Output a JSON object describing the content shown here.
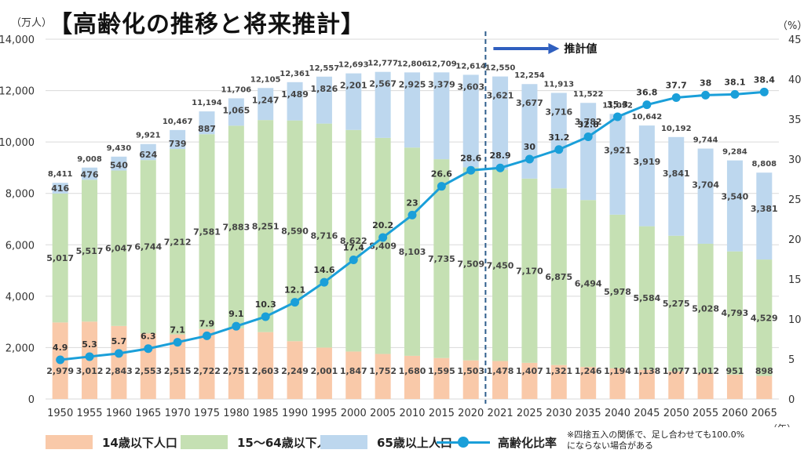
{
  "title": "【高齢化の推移と将来推計】",
  "left_unit": "（万人）",
  "right_unit": "（%）",
  "x_unit": "（年）",
  "projection_label": "推計値",
  "note": "※四捨五入の関係で、足し合わせても100.0%\nにならない場合がある",
  "colors": {
    "under14": "#f9c9a9",
    "age15_64": "#c5e0b3",
    "over65": "#bdd7ee",
    "ratio": "#1a9fd9",
    "divider": "#2e5e8c",
    "arrow": "#2f5fbf"
  },
  "chart_data": {
    "type": "bar",
    "stacked": true,
    "categories": [
      "1950",
      "1955",
      "1960",
      "1965",
      "1970",
      "1975",
      "1980",
      "1985",
      "1990",
      "1995",
      "2000",
      "2005",
      "2010",
      "2015",
      "2020",
      "2021",
      "2025",
      "2030",
      "2035",
      "2040",
      "2045",
      "2050",
      "2055",
      "2060",
      "2065"
    ],
    "series": [
      {
        "name": "14歳以下人口",
        "values": [
          2979,
          3012,
          2843,
          2553,
          2515,
          2722,
          2751,
          2603,
          2249,
          2001,
          1847,
          1752,
          1680,
          1595,
          1503,
          1478,
          1407,
          1321,
          1246,
          1194,
          1138,
          1077,
          1012,
          951,
          898
        ]
      },
      {
        "name": "15～64歳以下人口",
        "values": [
          5017,
          5517,
          6047,
          6744,
          7212,
          7581,
          7883,
          8251,
          8590,
          8716,
          8622,
          8409,
          8103,
          7735,
          7509,
          7450,
          7170,
          6875,
          6494,
          5978,
          5584,
          5275,
          5028,
          4793,
          4529
        ]
      },
      {
        "name": "65歳以上人口",
        "values": [
          416,
          476,
          540,
          624,
          739,
          887,
          1065,
          1247,
          1489,
          1826,
          2201,
          2567,
          2925,
          3379,
          3603,
          3621,
          3677,
          3716,
          3782,
          3921,
          3919,
          3841,
          3704,
          3540,
          3381
        ]
      }
    ],
    "totals": [
      "8,411",
      "9,008",
      "9,430",
      "9,921",
      "10,467",
      "11,194",
      "11,706",
      "12,105",
      "12,361",
      "12,557",
      "12,693",
      "12,777",
      "12,806",
      "12,709",
      "12,614",
      "12,550",
      "12,254",
      "11,913",
      "11,522",
      "11,092",
      "10,642",
      "10,192",
      "9,744",
      "9,284",
      "8,808"
    ],
    "line": {
      "name": "高齢化比率",
      "axis": "right",
      "values": [
        4.9,
        5.3,
        5.7,
        6.3,
        7.1,
        7.9,
        9.1,
        10.3,
        12.1,
        14.6,
        17.4,
        20.2,
        23,
        26.6,
        28.6,
        28.9,
        30,
        31.2,
        32.8,
        35.3,
        36.8,
        37.7,
        38,
        38.1,
        38.4
      ]
    },
    "y_left": {
      "min": 0,
      "max": 14000,
      "step": 2000,
      "ticks": [
        "0",
        "2,000",
        "4,000",
        "6,000",
        "8,000",
        "10,000",
        "12,000",
        "14,000"
      ]
    },
    "y_right": {
      "min": 0,
      "max": 45,
      "step": 5,
      "ticks": [
        "0",
        "5",
        "10",
        "15",
        "20",
        "25",
        "30",
        "35",
        "40",
        "45"
      ]
    },
    "projection_starts_after": "2020",
    "legend": "bottom",
    "grid": true
  }
}
